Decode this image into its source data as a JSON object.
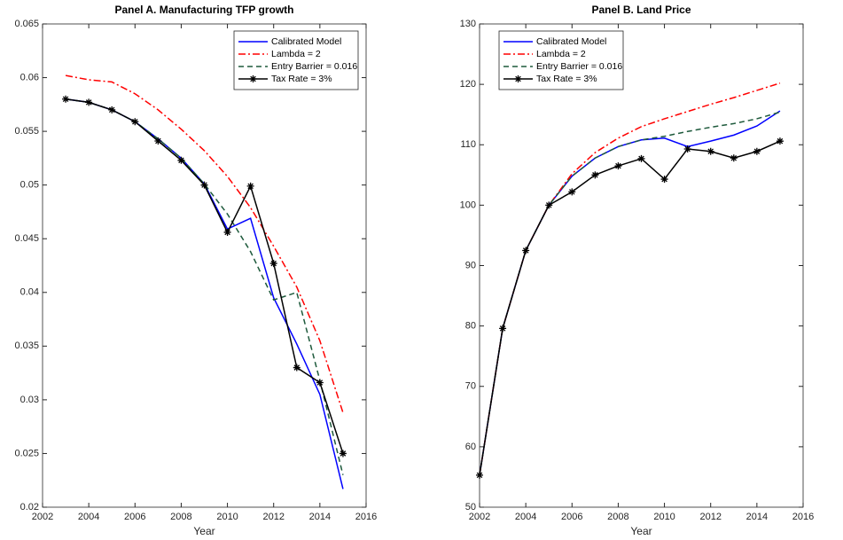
{
  "chart_data": [
    {
      "type": "line",
      "title": "Panel A. Manufacturing TFP growth",
      "xlabel": "Year",
      "x": [
        2003,
        2004,
        2005,
        2006,
        2007,
        2008,
        2009,
        2010,
        2011,
        2012,
        2013,
        2014,
        2015
      ],
      "xlim": [
        2002,
        2016
      ],
      "xticks": [
        2002,
        2004,
        2006,
        2008,
        2010,
        2012,
        2014,
        2016
      ],
      "ylim": [
        0.02,
        0.065
      ],
      "yticks": [
        0.02,
        0.025,
        0.03,
        0.035,
        0.04,
        0.045,
        0.05,
        0.055,
        0.06,
        0.065
      ],
      "grid": false,
      "legend": "upper right",
      "series": [
        {
          "name": "Calibrated Model",
          "color": "#0000ff",
          "linestyle": "solid",
          "marker": "none",
          "values": [
            0.058,
            0.0577,
            0.057,
            0.0559,
            0.0543,
            0.0525,
            0.0501,
            0.0459,
            0.0469,
            0.0395,
            0.0352,
            0.0305,
            0.0217
          ]
        },
        {
          "name": "Lambda = 2",
          "color": "#ff0000",
          "linestyle": "dash-dot",
          "marker": "none",
          "values": [
            0.0602,
            0.0598,
            0.0596,
            0.0585,
            0.057,
            0.0552,
            0.0532,
            0.0508,
            0.0479,
            0.0443,
            0.0405,
            0.0355,
            0.0288
          ]
        },
        {
          "name": "Entry Barrier = 0.016",
          "color": "#1e5a3c",
          "linestyle": "dashed",
          "marker": "none",
          "values": [
            0.058,
            0.0577,
            0.057,
            0.0559,
            0.0543,
            0.0525,
            0.0501,
            0.0473,
            0.0438,
            0.0393,
            0.04,
            0.0318,
            0.023
          ]
        },
        {
          "name": "Tax Rate = 3%",
          "color": "#000000",
          "linestyle": "solid",
          "marker": "asterisk",
          "values": [
            0.058,
            0.0577,
            0.057,
            0.0559,
            0.0541,
            0.0523,
            0.05,
            0.0456,
            0.0499,
            0.0427,
            0.033,
            0.0316,
            0.025
          ]
        }
      ]
    },
    {
      "type": "line",
      "title": "Panel B. Land Price",
      "xlabel": "Year",
      "x": [
        2002,
        2003,
        2004,
        2005,
        2006,
        2007,
        2008,
        2009,
        2010,
        2011,
        2012,
        2013,
        2014,
        2015
      ],
      "xlim": [
        2002,
        2016
      ],
      "xticks": [
        2002,
        2004,
        2006,
        2008,
        2010,
        2012,
        2014,
        2016
      ],
      "ylim": [
        50,
        130
      ],
      "yticks": [
        50,
        60,
        70,
        80,
        90,
        100,
        110,
        120,
        130
      ],
      "grid": false,
      "legend": "upper left",
      "series": [
        {
          "name": "Calibrated Model",
          "color": "#0000ff",
          "linestyle": "solid",
          "marker": "none",
          "values": [
            55.3,
            79.6,
            92.5,
            100,
            104.8,
            107.8,
            109.7,
            110.8,
            111.1,
            109.7,
            110.6,
            111.6,
            113.1,
            115.6
          ]
        },
        {
          "name": "Lambda = 2",
          "color": "#ff0000",
          "linestyle": "dash-dot",
          "marker": "none",
          "values": [
            55.3,
            79.6,
            92.5,
            100,
            105.2,
            108.7,
            111.1,
            113,
            114.3,
            115.5,
            116.7,
            117.8,
            119,
            120.2
          ]
        },
        {
          "name": "Entry Barrier = 0.016",
          "color": "#1e5a3c",
          "linestyle": "dashed",
          "marker": "none",
          "values": [
            55.3,
            79.6,
            92.5,
            100,
            104.8,
            107.8,
            109.7,
            110.8,
            111.4,
            112.2,
            112.9,
            113.5,
            114.3,
            115.4
          ]
        },
        {
          "name": "Tax Rate = 3%",
          "color": "#000000",
          "linestyle": "solid",
          "marker": "asterisk",
          "values": [
            55.3,
            79.6,
            92.5,
            100,
            102.2,
            105,
            106.5,
            107.7,
            104.3,
            109.3,
            108.9,
            107.8,
            108.9,
            110.6
          ]
        }
      ]
    }
  ]
}
